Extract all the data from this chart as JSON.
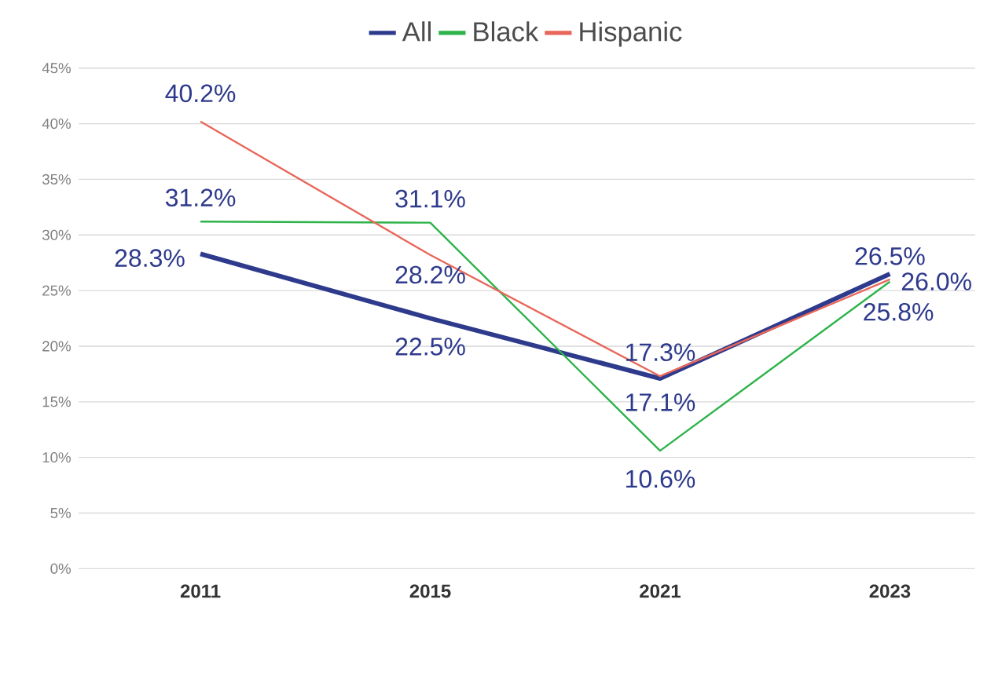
{
  "chart_data": {
    "type": "line",
    "categories": [
      "2011",
      "2015",
      "2021",
      "2023"
    ],
    "series": [
      {
        "name": "All",
        "color": "#2e3a8c",
        "values": [
          28.3,
          22.5,
          17.1,
          26.5
        ],
        "value_labels": [
          "28.3%",
          "22.5%",
          "17.1%",
          "26.5%"
        ]
      },
      {
        "name": "Black",
        "color": "#2db34a",
        "values": [
          31.2,
          31.1,
          10.6,
          25.8
        ],
        "value_labels": [
          "31.2%",
          "31.1%",
          "10.6%",
          "25.8%"
        ]
      },
      {
        "name": "Hispanic",
        "color": "#e8675a",
        "values": [
          40.2,
          28.2,
          17.3,
          26.0
        ],
        "value_labels": [
          "40.2%",
          "28.2%",
          "17.3%",
          "26.0%"
        ]
      }
    ],
    "ylim": [
      0,
      45
    ],
    "yticks": [
      {
        "value": 0,
        "label": "0%"
      },
      {
        "value": 5,
        "label": "5%"
      },
      {
        "value": 10,
        "label": "10%"
      },
      {
        "value": 15,
        "label": "15%"
      },
      {
        "value": 20,
        "label": "20%"
      },
      {
        "value": 25,
        "label": "25%"
      },
      {
        "value": 30,
        "label": "30%"
      },
      {
        "value": 35,
        "label": "35%"
      },
      {
        "value": 40,
        "label": "40%"
      },
      {
        "value": 45,
        "label": "45%"
      }
    ],
    "grid": "y",
    "legend": "top",
    "marker": "none",
    "line_style": "solid"
  }
}
